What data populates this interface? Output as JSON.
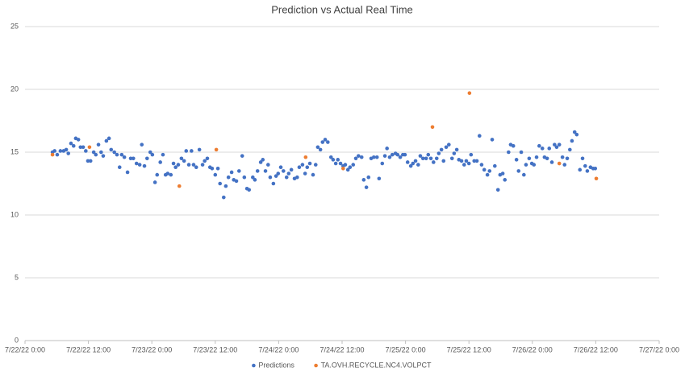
{
  "chart_data": {
    "type": "scatter",
    "title": "Prediction vs Actual Real Time",
    "xlim": [
      0,
      120
    ],
    "ylim": [
      0,
      25
    ],
    "xticks": [
      {
        "value": 0,
        "label": "7/22/22 0:00"
      },
      {
        "value": 12,
        "label": "7/22/22 12:00"
      },
      {
        "value": 24,
        "label": "7/23/22 0:00"
      },
      {
        "value": 36,
        "label": "7/23/22 12:00"
      },
      {
        "value": 48,
        "label": "7/24/22 0:00"
      },
      {
        "value": 60,
        "label": "7/24/22 12:00"
      },
      {
        "value": 72,
        "label": "7/25/22 0:00"
      },
      {
        "value": 84,
        "label": "7/25/22 12:00"
      },
      {
        "value": 96,
        "label": "7/26/22 0:00"
      },
      {
        "value": 108,
        "label": "7/26/22 12:00"
      },
      {
        "value": 120,
        "label": "7/27/22 0:00"
      }
    ],
    "yticks": [
      0,
      5,
      10,
      15,
      20,
      25
    ],
    "grid": true,
    "legend": "bottom",
    "series": [
      {
        "name": "Predictions",
        "color": "#4472c4",
        "x": [
          5.2,
          5.6,
          6.1,
          6.7,
          7.3,
          7.8,
          8.2,
          8.7,
          9.2,
          9.6,
          10.1,
          10.5,
          11.0,
          11.5,
          11.9,
          12.4,
          13.0,
          13.4,
          13.9,
          14.4,
          14.8,
          15.4,
          15.9,
          16.3,
          16.9,
          17.4,
          17.9,
          18.3,
          18.8,
          19.4,
          20.0,
          20.5,
          21.1,
          21.7,
          22.1,
          22.6,
          23.1,
          23.7,
          24.1,
          24.6,
          25.0,
          25.6,
          26.1,
          26.6,
          27.0,
          27.6,
          28.1,
          28.5,
          29.0,
          29.6,
          30.1,
          30.5,
          31.0,
          31.5,
          31.9,
          32.4,
          33.0,
          33.6,
          34.0,
          34.5,
          35.0,
          35.4,
          36.0,
          36.5,
          36.9,
          37.6,
          38.0,
          38.5,
          39.1,
          39.5,
          40.0,
          40.5,
          41.1,
          41.5,
          42.0,
          42.4,
          43.1,
          43.5,
          44.0,
          44.6,
          45.0,
          45.5,
          46.0,
          46.4,
          47.0,
          47.5,
          47.9,
          48.4,
          48.9,
          49.5,
          49.9,
          50.4,
          51.0,
          51.5,
          51.9,
          52.5,
          53.0,
          53.4,
          53.9,
          54.5,
          55.0,
          55.4,
          55.9,
          56.3,
          56.8,
          57.3,
          57.9,
          58.3,
          58.8,
          59.2,
          59.7,
          60.2,
          60.6,
          61.1,
          61.5,
          62.1,
          62.6,
          63.1,
          63.7,
          64.1,
          64.6,
          65.0,
          65.5,
          66.0,
          66.6,
          67.0,
          67.6,
          68.1,
          68.5,
          69.0,
          69.5,
          70.1,
          70.5,
          71.0,
          71.5,
          71.9,
          72.4,
          73.0,
          73.4,
          73.9,
          74.4,
          74.8,
          75.3,
          75.9,
          76.3,
          76.8,
          77.3,
          77.9,
          78.3,
          78.8,
          79.2,
          79.7,
          80.2,
          80.8,
          81.2,
          81.7,
          82.1,
          82.6,
          83.1,
          83.5,
          84.0,
          84.4,
          85.0,
          85.5,
          86.0,
          86.4,
          86.9,
          87.5,
          87.9,
          88.4,
          88.9,
          89.5,
          89.9,
          90.4,
          90.8,
          91.5,
          91.9,
          92.4,
          93.0,
          93.4,
          93.9,
          94.4,
          94.8,
          95.4,
          95.9,
          96.3,
          96.8,
          97.3,
          97.9,
          98.3,
          98.8,
          99.2,
          99.7,
          100.2,
          100.6,
          101.1,
          101.7,
          102.1,
          102.6,
          103.1,
          103.5,
          104.0,
          104.4,
          105.0,
          105.5,
          106.0,
          106.4,
          107.0,
          107.5,
          107.9
        ],
        "values": [
          15.0,
          15.1,
          14.8,
          15.1,
          15.1,
          15.2,
          14.9,
          15.7,
          15.5,
          16.1,
          16.0,
          15.4,
          15.4,
          15.1,
          14.3,
          14.3,
          15.0,
          14.8,
          15.6,
          15.0,
          14.7,
          15.9,
          16.1,
          15.2,
          15.0,
          14.8,
          13.8,
          14.8,
          14.6,
          13.4,
          14.5,
          14.5,
          14.1,
          14.0,
          15.6,
          13.9,
          14.5,
          15.0,
          14.8,
          12.6,
          13.2,
          14.2,
          14.8,
          13.2,
          13.3,
          13.2,
          14.1,
          13.8,
          14.0,
          14.5,
          14.3,
          15.1,
          14.0,
          15.1,
          14.0,
          13.8,
          15.2,
          14.0,
          14.3,
          14.5,
          13.8,
          13.7,
          13.2,
          13.7,
          12.5,
          11.4,
          12.3,
          13.0,
          13.4,
          12.8,
          12.7,
          13.5,
          14.7,
          13.0,
          12.1,
          12.0,
          13.0,
          12.8,
          13.5,
          14.2,
          14.4,
          13.5,
          14.0,
          13.0,
          12.5,
          13.1,
          13.3,
          13.8,
          13.5,
          13.0,
          13.3,
          13.6,
          12.9,
          13.0,
          13.8,
          14.0,
          13.3,
          13.8,
          14.1,
          13.2,
          14.0,
          15.4,
          15.2,
          15.8,
          16.0,
          15.8,
          14.6,
          14.4,
          14.1,
          14.4,
          14.1,
          13.9,
          14.0,
          13.6,
          13.8,
          14.0,
          14.5,
          14.7,
          14.6,
          12.8,
          12.2,
          13.0,
          14.5,
          14.6,
          14.6,
          12.9,
          14.1,
          14.7,
          15.3,
          14.6,
          14.8,
          14.9,
          14.8,
          14.6,
          14.8,
          14.8,
          14.2,
          13.9,
          14.1,
          14.3,
          14.0,
          14.7,
          14.5,
          14.5,
          14.8,
          14.5,
          14.2,
          14.5,
          14.9,
          15.2,
          14.3,
          15.4,
          15.6,
          14.5,
          14.9,
          15.2,
          14.4,
          14.3,
          14.0,
          14.3,
          14.1,
          14.8,
          14.3,
          14.3,
          16.3,
          14.0,
          13.6,
          13.2,
          13.5,
          16.0,
          13.9,
          12.0,
          13.2,
          13.3,
          12.8,
          15.0,
          15.6,
          15.5,
          14.4,
          13.5,
          15.0,
          13.2,
          14.0,
          14.5,
          14.1,
          14.0,
          14.6,
          15.5,
          15.3,
          14.6,
          14.5,
          15.3,
          14.2,
          15.6,
          15.4,
          15.6,
          14.6,
          14.0,
          14.5,
          15.2,
          15.9,
          16.6,
          16.4,
          13.6,
          14.5,
          13.9,
          13.5,
          13.8,
          13.7,
          13.7
        ]
      },
      {
        "name": "TA.OVH.RECYCLE.NC4.VOLPCT",
        "color": "#ed7d31",
        "x": [
          5.2,
          12.2,
          29.2,
          36.2,
          53.1,
          60.2,
          77.1,
          84.1,
          101.1,
          108.1
        ],
        "values": [
          14.8,
          15.4,
          12.3,
          15.2,
          14.6,
          13.7,
          17.0,
          19.7,
          14.1,
          12.9
        ]
      }
    ]
  }
}
